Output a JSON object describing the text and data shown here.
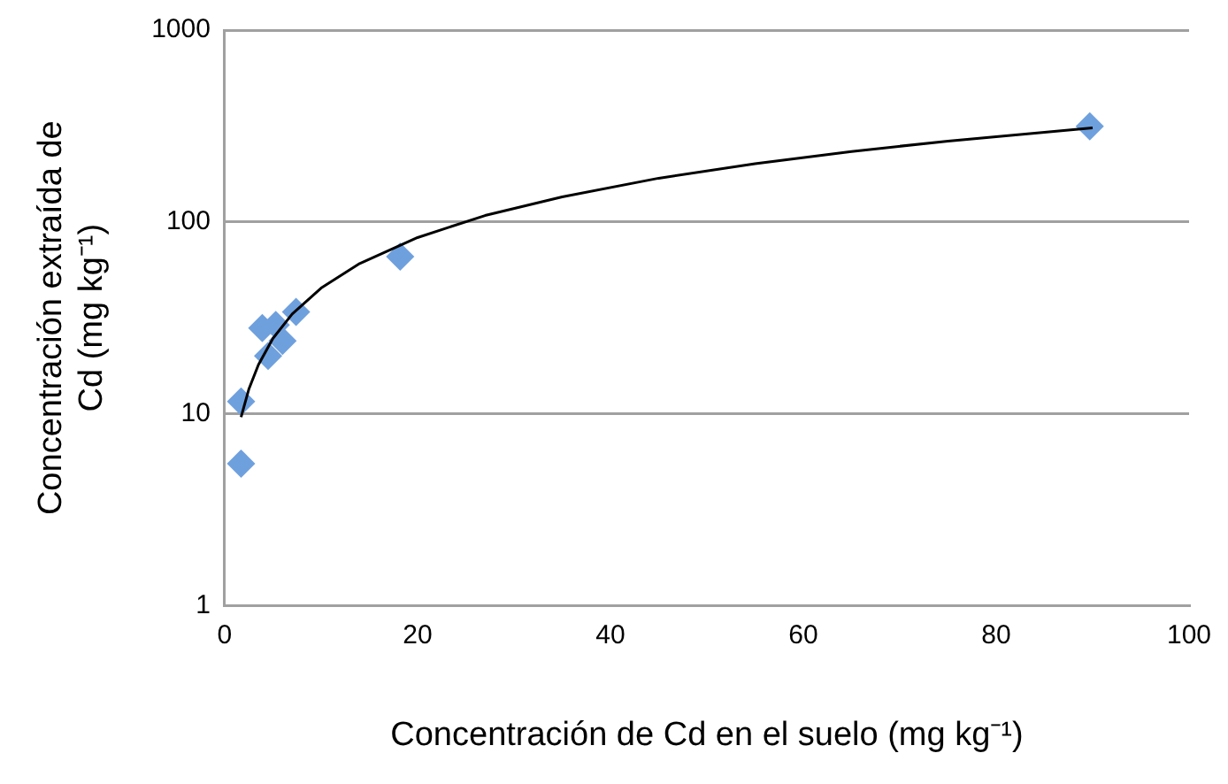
{
  "chart_data": {
    "type": "scatter",
    "xlabel": "Concentración de Cd en el suelo (mg kg⁻¹)",
    "ylabel": "Concentración extraída de Cd (mg kg⁻¹)",
    "x": [
      1.7,
      1.7,
      3.9,
      5.3,
      4.5,
      6.0,
      7.4,
      18.2,
      89.7
    ],
    "series": [
      {
        "color": "#6fa0de",
        "values": [
          5.5,
          11.6,
          28,
          29,
          20,
          24,
          34,
          66,
          315
        ]
      },
      {
        "type": "line",
        "color": "#000000",
        "marker": "none",
        "x": [
          1.7,
          2.5,
          3.5,
          5,
          7,
          10,
          14,
          20,
          27,
          35,
          45,
          55,
          65,
          75,
          90
        ],
        "values": [
          9.6,
          13.4,
          18.0,
          24.7,
          33.1,
          45.2,
          60.7,
          82.9,
          108,
          135,
          169,
          201,
          233,
          264,
          309
        ]
      }
    ],
    "xlim": [
      0,
      100
    ],
    "xticks": [
      0,
      20,
      40,
      60,
      80,
      100
    ],
    "ylim": [
      1,
      1000
    ],
    "yticks": [
      1,
      10,
      100,
      1000
    ],
    "log": "y",
    "grid": "y",
    "marker": "diamond",
    "legend": false
  }
}
